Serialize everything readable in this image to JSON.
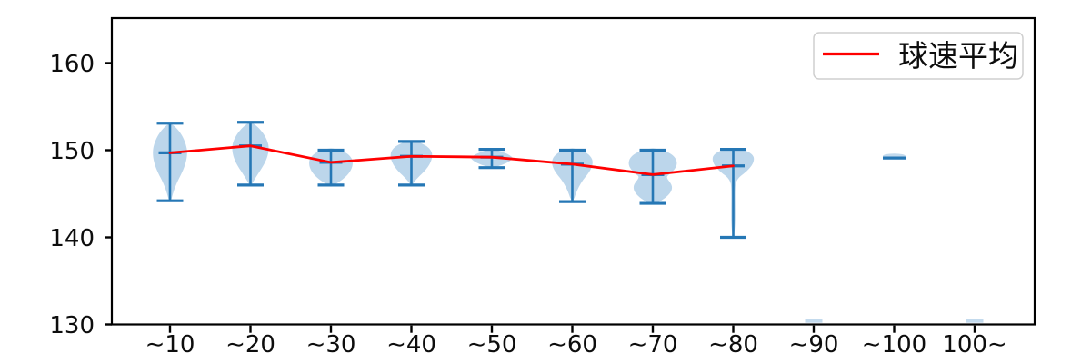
{
  "legend": {
    "entries": [
      {
        "label": "球速平均",
        "color": "#ff0000"
      }
    ]
  },
  "chart_data": {
    "type": "violin",
    "title": "",
    "xlabel": "",
    "ylabel": "",
    "categories": [
      "∼10",
      "∼20",
      "∼30",
      "∼40",
      "∼50",
      "∼60",
      "∼70",
      "∼80",
      "∼90",
      "∼100",
      "100∼"
    ],
    "yticks": [
      130,
      140,
      150,
      160
    ],
    "ylim": [
      130,
      165
    ],
    "grid": false,
    "legend_position": "upper right",
    "violins": [
      {
        "category": "∼10",
        "max": 153.1,
        "min": 144.2,
        "mean": 149.7
      },
      {
        "category": "∼20",
        "max": 153.2,
        "min": 146.0,
        "mean": 150.5
      },
      {
        "category": "∼30",
        "max": 150.0,
        "min": 146.0,
        "mean": 148.6
      },
      {
        "category": "∼40",
        "max": 151.0,
        "min": 146.0,
        "mean": 149.3
      },
      {
        "category": "∼50",
        "max": 150.1,
        "min": 148.0,
        "mean": 149.2
      },
      {
        "category": "∼60",
        "max": 150.0,
        "min": 144.1,
        "mean": 148.4
      },
      {
        "category": "∼70",
        "max": 150.0,
        "min": 143.9,
        "mean": 147.2
      },
      {
        "category": "∼80",
        "max": 150.1,
        "min": 140.0,
        "mean": 148.2
      },
      {
        "category": "∼90",
        "clipped_marker_value": 130.4
      },
      {
        "category": "∼100",
        "single_value": 149.1
      },
      {
        "category": "100∼",
        "clipped_marker_value": 130.4
      }
    ],
    "series": [
      {
        "name": "球速平均",
        "type": "line",
        "color": "#ff0000",
        "x": [
          "∼10",
          "∼20",
          "∼30",
          "∼40",
          "∼50",
          "∼60",
          "∼70",
          "∼80"
        ],
        "values": [
          149.7,
          150.5,
          148.6,
          149.3,
          149.2,
          148.4,
          147.2,
          148.2
        ]
      }
    ],
    "colors": {
      "violin_fill": "#bcd6eb",
      "violin_line": "#2577b5",
      "mean_line": "#ff0000"
    }
  }
}
